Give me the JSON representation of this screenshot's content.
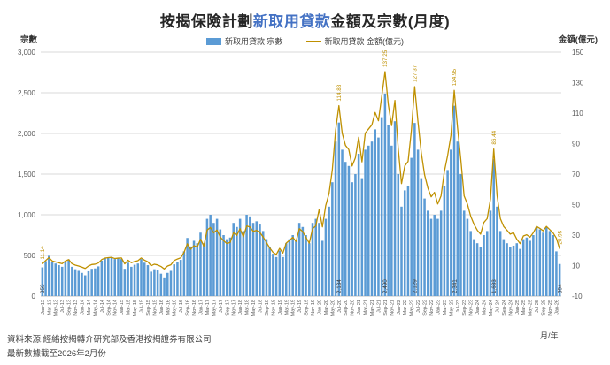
{
  "title": {
    "prefix": "按揭保險計劃",
    "highlight": "新取用貸款",
    "suffix": "金額及宗數(月度)"
  },
  "legend": {
    "bars": "新取用貸款 宗數",
    "line": "新取用貸款 金額(億元)"
  },
  "axes": {
    "left_title": "宗數",
    "right_title": "金額(億元)",
    "x_title": "月/年"
  },
  "footer": {
    "source": "資料來源:經絡按揭轉介研究部及香港按揭證券有限公司",
    "updated": "最新數據截至2026年2月份"
  },
  "colors": {
    "bar": "#5B9BD5",
    "line": "#BF9000",
    "title_highlight": "#4472C4",
    "grid": "#D9D9D9",
    "axis_line": "#BFBFBF",
    "tick_text": "#595959",
    "bar_label": "#404040",
    "line_label": "#BF9000"
  },
  "chart_data": {
    "type": "bar",
    "title": "按揭保險計劃新取用貸款金額及宗數(月度)",
    "x_start": "Jan-13",
    "x_end": "Feb-26",
    "x_tick_labels": [
      "Jan-13",
      "Mar-13",
      "May-13",
      "Jul-13",
      "Sep-13",
      "Nov-13",
      "Jan-14",
      "Mar-14",
      "May-14",
      "Jul-14",
      "Sep-14",
      "Nov-14",
      "Jan-15",
      "Mar-15",
      "May-15",
      "Jul-15",
      "Sep-15",
      "Nov-15",
      "Jan-16",
      "Mar-16",
      "May-16",
      "Jul-16",
      "Sep-16",
      "Nov-16",
      "Jan-17",
      "Mar-17",
      "May-17",
      "Jul-17",
      "Sep-17",
      "Nov-17",
      "Jan-18",
      "Mar-18",
      "May-18",
      "Jul-18",
      "Sep-18",
      "Nov-18",
      "Jan-19",
      "Mar-19",
      "May-19",
      "Jul-19",
      "Sep-19",
      "Nov-19",
      "Jan-20",
      "Mar-20",
      "May-20",
      "Jul-20",
      "Sep-20",
      "Nov-20",
      "Jan-21",
      "Mar-21",
      "May-21",
      "Jul-21",
      "Sep-21",
      "Nov-21",
      "Jan-22",
      "Mar-22",
      "May-22",
      "Jul-22",
      "Sep-22",
      "Nov-22",
      "Jan-23",
      "Mar-23",
      "May-23",
      "Jul-23",
      "Sep-23",
      "Nov-23",
      "Jan-24",
      "Mar-24",
      "May-24",
      "Jul-24",
      "Sep-24",
      "Nov-24",
      "Jan-25",
      "Mar-25",
      "May-25",
      "Jul-25",
      "Sep-25",
      "Nov-25",
      "Jan-26"
    ],
    "left_axis": {
      "title": "宗數",
      "min": 0,
      "max": 3000,
      "ticks": [
        "0",
        "500",
        "1,000",
        "1,500",
        "2,000",
        "2,500",
        "3,000"
      ]
    },
    "right_axis": {
      "title": "金額(億元)",
      "min": -10,
      "max": 150,
      "ticks": [
        "-10",
        "10",
        "30",
        "50",
        "70",
        "90",
        "110",
        "130",
        "150"
      ]
    },
    "series": [
      {
        "name": "新取用貸款 宗數",
        "render": "bar",
        "axis": "left",
        "values": [
          353,
          430,
          495,
          420,
          400,
          380,
          360,
          420,
          450,
          360,
          330,
          310,
          285,
          255,
          305,
          335,
          340,
          365,
          435,
          465,
          475,
          480,
          455,
          465,
          455,
          335,
          410,
          360,
          385,
          400,
          455,
          410,
          380,
          300,
          330,
          315,
          275,
          230,
          285,
          310,
          390,
          420,
          445,
          550,
          715,
          610,
          680,
          650,
          780,
          650,
          950,
          1000,
          900,
          950,
          820,
          750,
          700,
          720,
          900,
          850,
          950,
          800,
          1000,
          980,
          900,
          920,
          880,
          800,
          700,
          600,
          520,
          480,
          560,
          480,
          650,
          700,
          750,
          680,
          900,
          850,
          750,
          650,
          900,
          950,
          900,
          680,
          950,
          1100,
          1400,
          1900,
          2134,
          1800,
          1650,
          1600,
          1400,
          1500,
          1750,
          1450,
          1800,
          1850,
          1900,
          2050,
          1950,
          2200,
          2490,
          2100,
          1850,
          2150,
          1500,
          1100,
          1300,
          1350,
          1700,
          2129,
          1800,
          1450,
          1200,
          1050,
          950,
          1000,
          950,
          1050,
          1350,
          1550,
          1800,
          2341,
          1900,
          1500,
          1050,
          950,
          800,
          700,
          650,
          600,
          750,
          800,
          1050,
          1683,
          1100,
          800,
          700,
          650,
          600,
          620,
          650,
          580,
          700,
          720,
          680,
          750,
          850,
          820,
          780,
          850,
          800,
          750,
          550,
          394
        ]
      },
      {
        "name": "新取用貸款 金額(億元)",
        "render": "line",
        "axis": "right",
        "values": [
          11.14,
          13.3,
          15.2,
          13.0,
          12.4,
          11.8,
          11.2,
          13.0,
          13.9,
          11.2,
          10.3,
          9.7,
          9.0,
          8.1,
          9.7,
          10.7,
          10.9,
          11.7,
          13.9,
          14.9,
          15.2,
          15.4,
          14.6,
          14.9,
          15.0,
          11.1,
          13.5,
          11.9,
          12.7,
          13.2,
          15.0,
          13.5,
          12.5,
          9.9,
          10.9,
          10.4,
          9.4,
          7.8,
          9.7,
          10.5,
          13.3,
          14.3,
          15.1,
          18.7,
          24.3,
          20.7,
          23.1,
          22.1,
          27.3,
          22.8,
          33.3,
          35.0,
          31.5,
          33.3,
          28.7,
          26.3,
          24.5,
          25.2,
          31.5,
          29.8,
          34.2,
          28.8,
          36.0,
          35.3,
          32.4,
          33.1,
          31.7,
          28.8,
          25.2,
          21.6,
          18.7,
          17.3,
          21.3,
          18.2,
          24.7,
          26.6,
          28.5,
          25.8,
          34.2,
          32.3,
          28.5,
          24.7,
          34.2,
          36.1,
          46.8,
          35.4,
          49.4,
          57.2,
          72.8,
          98.8,
          114.88,
          96.8,
          88.8,
          86.1,
          75.3,
          80.7,
          94.2,
          78.0,
          96.9,
          99.6,
          102.3,
          110.4,
          105.0,
          121.0,
          137.25,
          115.5,
          101.8,
          118.3,
          87.0,
          63.8,
          75.4,
          78.3,
          98.6,
          127.37,
          104.4,
          84.1,
          69.6,
          60.9,
          55.1,
          58.0,
          50.4,
          55.7,
          71.6,
          82.2,
          95.4,
          124.95,
          100.7,
          79.5,
          55.7,
          50.4,
          42.4,
          37.1,
          33.2,
          30.6,
          38.3,
          40.8,
          53.6,
          86.44,
          56.1,
          40.8,
          35.7,
          33.2,
          30.6,
          31.6,
          27.3,
          24.4,
          29.4,
          30.2,
          28.6,
          31.5,
          35.7,
          34.4,
          32.8,
          35.7,
          33.6,
          31.5,
          28.0,
          20.95
        ]
      }
    ],
    "data_labels": {
      "bars": [
        {
          "index": 0,
          "text": "353"
        },
        {
          "index": 90,
          "text": "2,134"
        },
        {
          "index": 104,
          "text": "2,490"
        },
        {
          "index": 113,
          "text": "2,129"
        },
        {
          "index": 125,
          "text": "2,341"
        },
        {
          "index": 137,
          "text": "1,683"
        },
        {
          "index": 157,
          "text": "394"
        }
      ],
      "line": [
        {
          "index": 0,
          "text": "11.14"
        },
        {
          "index": 90,
          "text": "114.88"
        },
        {
          "index": 104,
          "text": "137.25"
        },
        {
          "index": 113,
          "text": "127.37"
        },
        {
          "index": 125,
          "text": "124.95"
        },
        {
          "index": 137,
          "text": "86.44"
        },
        {
          "index": 157,
          "text": "20.95"
        }
      ]
    },
    "grid": true,
    "legend_position": "top"
  }
}
